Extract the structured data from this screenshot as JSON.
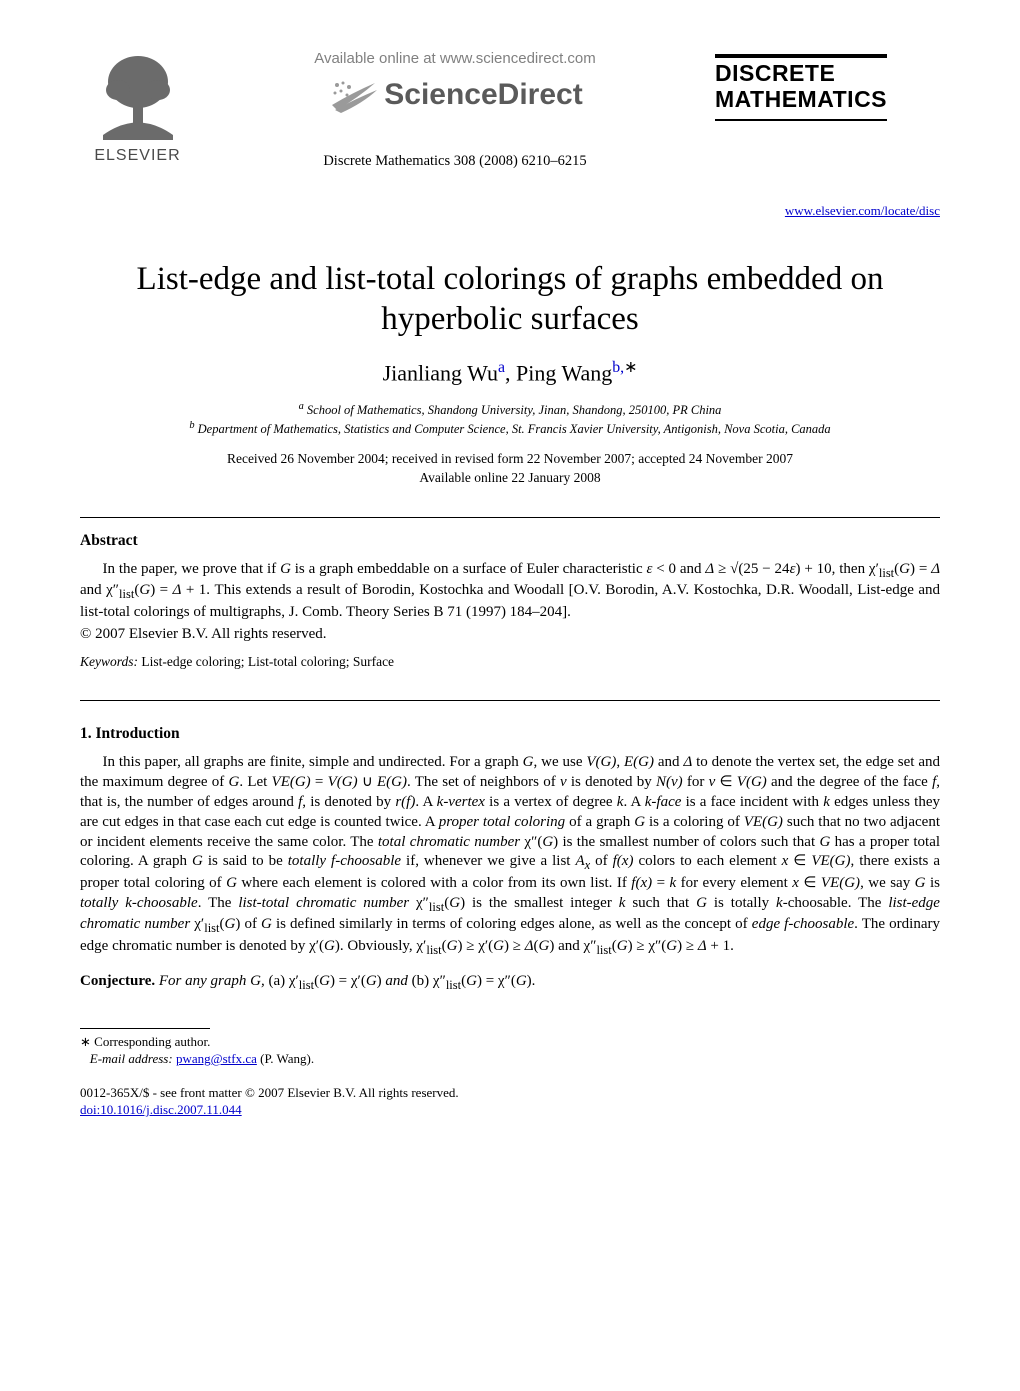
{
  "header": {
    "available_online": "Available online at www.sciencedirect.com",
    "sciencedirect": "ScienceDirect",
    "journal_ref": "Discrete Mathematics 308 (2008) 6210–6215",
    "journal_title_line1": "DISCRETE",
    "journal_title_line2": "MATHEMATICS",
    "journal_url": "www.elsevier.com/locate/disc",
    "elsevier": "ELSEVIER",
    "colors": {
      "gray_text": "#808080",
      "sd_text": "#5a5a5a",
      "link_blue": "#0000cc",
      "black": "#000000",
      "elsevier_gray": "#4a4a4a"
    }
  },
  "title": "List-edge and list-total colorings of graphs embedded on hyperbolic surfaces",
  "authors_html": "Jianliang Wu<sup class=\"sup\">a</sup>, Ping Wang<sup class=\"sup\">b,</sup><sup class=\"sup star\">∗</sup>",
  "affil_a": "a School of Mathematics, Shandong University, Jinan, Shandong, 250100, PR China",
  "affil_b": "b Department of Mathematics, Statistics and Computer Science, St. Francis Xavier University, Antigonish, Nova Scotia, Canada",
  "dates_line1": "Received 26 November 2004; received in revised form 22 November 2007; accepted 24 November 2007",
  "dates_line2": "Available online 22 January 2008",
  "abstract": {
    "heading": "Abstract",
    "para_html": "In the paper, we prove that if <span class=\"ital\">G</span> is a graph embeddable on a surface of Euler characteristic <span class=\"ital\">ε</span> &lt; 0 and <span class=\"ital\">Δ</span> ≥ √(25 − 24<span class=\"ital\">ε</span>) + 10, then χ′<sub>list</sub>(<span class=\"ital\">G</span>) = <span class=\"ital\">Δ</span> and χ″<sub>list</sub>(<span class=\"ital\">G</span>) = <span class=\"ital\">Δ</span> + 1. This extends a result of Borodin, Kostochka and Woodall [O.V. Borodin, A.V. Kostochka, D.R. Woodall, List-edge and list-total colorings of multigraphs, J. Comb. Theory Series B 71 (1997) 184–204].",
    "copyright": "© 2007 Elsevier B.V. All rights reserved."
  },
  "keywords": {
    "label": "Keywords:",
    "text": " List-edge coloring; List-total coloring; Surface"
  },
  "section1": {
    "heading": "1.  Introduction",
    "para1_html": "In this paper, all graphs are finite, simple and undirected. For a graph <span class=\"ital\">G</span>, we use <span class=\"ital\">V(G)</span>, <span class=\"ital\">E(G)</span> and <span class=\"ital\">Δ</span> to denote the vertex set, the edge set and the maximum degree of <span class=\"ital\">G</span>. Let <span class=\"ital\">VE(G)</span> = <span class=\"ital\">V(G)</span> ∪ <span class=\"ital\">E(G)</span>. The set of neighbors of <span class=\"ital\">v</span> is denoted by <span class=\"ital\">N(v)</span> for <span class=\"ital\">v</span> ∈ <span class=\"ital\">V(G)</span> and the degree of the face <span class=\"ital\">f</span>, that is, the number of edges around <span class=\"ital\">f</span>, is denoted by <span class=\"ital\">r(f)</span>. A <span class=\"ital\">k-vertex</span> is a vertex of degree <span class=\"ital\">k</span>. A <span class=\"ital\">k-face</span> is a face incident with <span class=\"ital\">k</span> edges unless they are cut edges in that case each cut edge is counted twice. A <span class=\"ital\">proper total coloring</span> of a graph <span class=\"ital\">G</span> is a coloring of <span class=\"ital\">VE(G)</span> such that no two adjacent or incident elements receive the same color. The <span class=\"ital\">total chromatic number</span> χ″(<span class=\"ital\">G</span>) is the smallest number of colors such that <span class=\"ital\">G</span> has a proper total coloring. A graph <span class=\"ital\">G</span> is said to be <span class=\"ital\">totally f-choosable</span> if, whenever we give a list <span class=\"ital\">A<sub>x</sub></span> of <span class=\"ital\">f(x)</span> colors to each element <span class=\"ital\">x</span> ∈ <span class=\"ital\">VE(G)</span>, there exists a proper total coloring of <span class=\"ital\">G</span> where each element is colored with a color from its own list. If <span class=\"ital\">f(x)</span> = <span class=\"ital\">k</span> for every element <span class=\"ital\">x</span> ∈ <span class=\"ital\">VE(G)</span>, we say <span class=\"ital\">G</span> is <span class=\"ital\">totally k-choosable</span>. The <span class=\"ital\">list-total chromatic number</span> χ″<sub>list</sub>(<span class=\"ital\">G</span>) is the smallest integer <span class=\"ital\">k</span> such that <span class=\"ital\">G</span> is totally <span class=\"ital\">k</span>-choosable. The <span class=\"ital\">list-edge chromatic number</span> χ′<sub>list</sub>(<span class=\"ital\">G</span>) of <span class=\"ital\">G</span> is defined similarly in terms of coloring edges alone, as well as the concept of <span class=\"ital\">edge f-choosable</span>. The ordinary edge chromatic number is denoted by χ′(<span class=\"ital\">G</span>). Obviously, χ′<sub>list</sub>(<span class=\"ital\">G</span>) ≥ χ′(<span class=\"ital\">G</span>) ≥ <span class=\"ital\">Δ</span>(<span class=\"ital\">G</span>) and χ″<sub>list</sub>(<span class=\"ital\">G</span>) ≥ χ″(<span class=\"ital\">G</span>) ≥ <span class=\"ital\">Δ</span> + 1.",
    "conjecture_html": "<span class=\"conj-label\">Conjecture.</span> <span class=\"ital\">For any graph G,</span> (a) χ′<sub>list</sub>(<span class=\"ital\">G</span>) = χ′(<span class=\"ital\">G</span>) <span class=\"ital\">and</span> (b) χ″<sub>list</sub>(<span class=\"ital\">G</span>) = χ″(<span class=\"ital\">G</span>)."
  },
  "footnotes": {
    "corresponding": "∗ Corresponding author.",
    "email_label": "E-mail address:",
    "email": "pwang@stfx.ca",
    "email_paren": " (P. Wang)."
  },
  "footer": {
    "line1": "0012-365X/$ - see front matter © 2007 Elsevier B.V. All rights reserved.",
    "doi": "doi:10.1016/j.disc.2007.11.044"
  }
}
